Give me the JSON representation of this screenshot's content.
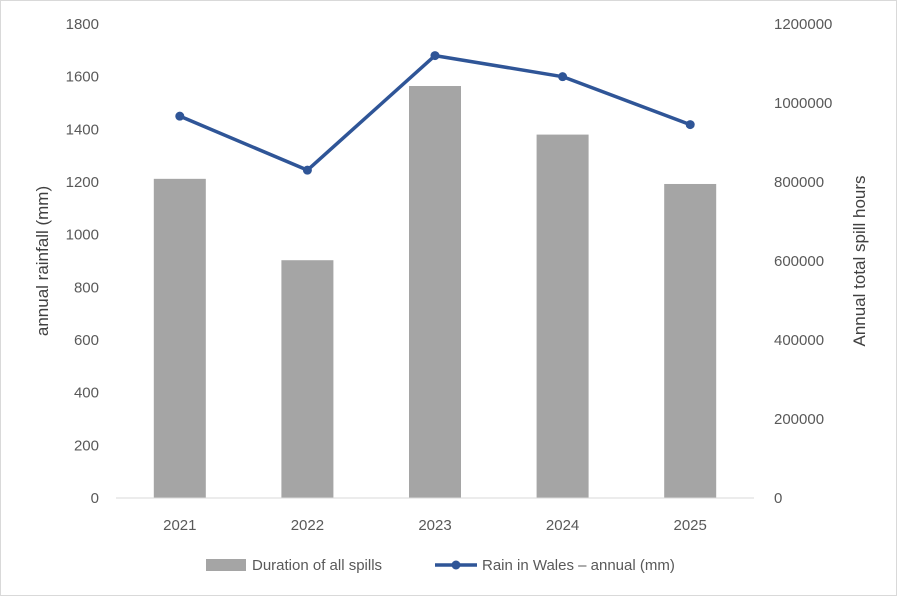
{
  "chart_data": {
    "type": "bar+line",
    "title": "",
    "categories": [
      "2021",
      "2022",
      "2023",
      "2024",
      "2025"
    ],
    "xlabel": "",
    "y_left": {
      "label": "annual rainfall (mm)",
      "ylim": [
        0,
        1800
      ],
      "ticks": [
        "0",
        "200",
        "400",
        "600",
        "800",
        "1000",
        "1200",
        "1400",
        "1600",
        "1800"
      ]
    },
    "y_right": {
      "label": "Annual total spill hours",
      "ylim": [
        0,
        1200000
      ],
      "ticks": [
        "0",
        "200000",
        "400000",
        "600000",
        "800000",
        "1000000",
        "1200000"
      ]
    },
    "series": [
      {
        "name": "Duration of all spills",
        "type": "bar",
        "axis": "right",
        "color": "#a5a5a5",
        "values": [
          808000,
          602000,
          1043000,
          920000,
          795000
        ]
      },
      {
        "name": "Rain in Wales – annual (mm)",
        "type": "line",
        "axis": "left",
        "color": "#2f5597",
        "values": [
          1450,
          1245,
          1680,
          1600,
          1418
        ]
      }
    ],
    "legend_position": "bottom",
    "grid": false
  }
}
